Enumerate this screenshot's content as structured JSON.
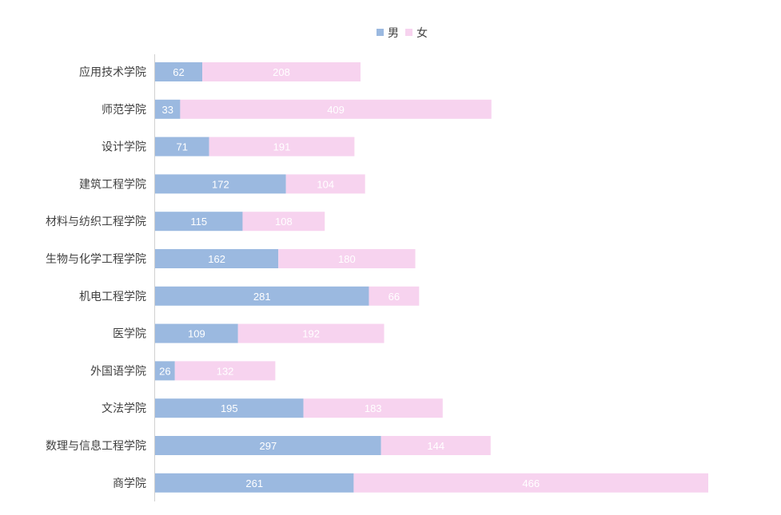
{
  "chart_data": {
    "type": "bar",
    "orientation": "horizontal",
    "stacked": true,
    "title": "",
    "xlabel": "",
    "ylabel": "",
    "legend_position": "top",
    "grid": false,
    "categories": [
      "应用技术学院",
      "师范学院",
      "设计学院",
      "建筑工程学院",
      "材料与纺织工程学院",
      "生物与化学工程学院",
      "机电工程学院",
      "医学院",
      "外国语学院",
      "文法学院",
      "数理与信息工程学院",
      "商学院"
    ],
    "series": [
      {
        "name": "男",
        "color": "#9bb9e0",
        "values": [
          62,
          33,
          71,
          172,
          115,
          162,
          281,
          109,
          26,
          195,
          297,
          261
        ]
      },
      {
        "name": "女",
        "color": "#f7d3ef",
        "values": [
          208,
          409,
          191,
          104,
          108,
          180,
          66,
          192,
          132,
          183,
          144,
          466
        ]
      }
    ],
    "xlim": [
      0,
      727
    ]
  }
}
